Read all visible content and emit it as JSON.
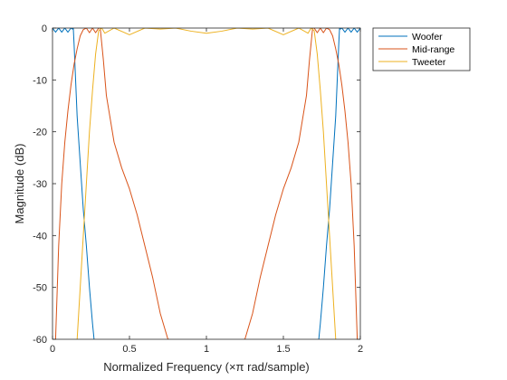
{
  "chart_data": {
    "type": "line",
    "xlabel": "Normalized  Frequency  (×π  rad/sample)",
    "ylabel": "Magnitude (dB)",
    "xlim": [
      0,
      2
    ],
    "ylim": [
      -60,
      0
    ],
    "x_ticks": [
      0,
      0.5,
      1,
      1.5,
      2
    ],
    "x_tick_labels": [
      "0",
      "0.5",
      "1",
      "1.5",
      "2"
    ],
    "y_ticks": [
      0,
      -10,
      -20,
      -30,
      -40,
      -50,
      -60
    ],
    "y_tick_labels": [
      "0",
      "-10",
      "-20",
      "-30",
      "-40",
      "-50",
      "-60"
    ],
    "grid": false,
    "legend_position": "outside-top-right",
    "series": [
      {
        "name": "Woofer",
        "color": "#0072BD",
        "x": [
          0,
          0.02,
          0.04,
          0.06,
          0.08,
          0.1,
          0.12,
          0.13,
          0.135,
          0.14,
          0.15,
          0.16,
          0.18,
          0.2,
          0.22,
          0.24,
          0.26,
          0.27,
          1.73,
          1.74,
          1.76,
          1.78,
          1.8,
          1.82,
          1.84,
          1.85,
          1.86,
          1.865,
          1.87,
          1.88,
          1.9,
          1.92,
          1.94,
          1.96,
          1.98,
          2.0
        ],
        "y": [
          0,
          -0.8,
          0,
          -0.8,
          0,
          -0.8,
          0,
          -0.2,
          0,
          -3,
          -10,
          -17,
          -26,
          -35,
          -42,
          -50,
          -57,
          -60,
          -60,
          -57,
          -50,
          -42,
          -35,
          -26,
          -17,
          -10,
          -3,
          0,
          -0.2,
          0,
          -0.8,
          0,
          -0.8,
          0,
          -0.8,
          0
        ]
      },
      {
        "name": "Mid-range",
        "color": "#D95319",
        "x": [
          0.02,
          0.04,
          0.06,
          0.08,
          0.1,
          0.12,
          0.14,
          0.16,
          0.18,
          0.2,
          0.22,
          0.24,
          0.26,
          0.28,
          0.3,
          0.31,
          0.33,
          0.35,
          0.4,
          0.45,
          0.5,
          0.55,
          0.6,
          0.65,
          0.7,
          0.75,
          0.76,
          1.24,
          1.25,
          1.3,
          1.35,
          1.4,
          1.45,
          1.5,
          1.55,
          1.6,
          1.65,
          1.67,
          1.69,
          1.7,
          1.72,
          1.74,
          1.76,
          1.78,
          1.8,
          1.82,
          1.84,
          1.86,
          1.88,
          1.9,
          1.92,
          1.94,
          1.96,
          1.98
        ],
        "y": [
          -60,
          -42,
          -30,
          -22,
          -16,
          -11,
          -7,
          -4,
          -1.5,
          -0.3,
          0,
          -0.9,
          0,
          -0.9,
          0,
          0,
          -6,
          -13,
          -22,
          -27,
          -31,
          -36,
          -42,
          -48,
          -55,
          -60,
          -60,
          -60,
          -60,
          -55,
          -48,
          -42,
          -36,
          -31,
          -27,
          -22,
          -13,
          -6,
          0,
          0,
          -0.9,
          0,
          -0.9,
          0,
          -0.3,
          -1.5,
          -4,
          -7,
          -11,
          -16,
          -22,
          -30,
          -42,
          -60
        ]
      },
      {
        "name": "Tweeter",
        "color": "#EDB120",
        "x": [
          0.16,
          0.18,
          0.2,
          0.22,
          0.24,
          0.26,
          0.28,
          0.3,
          0.32,
          0.34,
          0.4,
          0.5,
          0.6,
          0.7,
          0.8,
          0.9,
          1.0,
          1.1,
          1.2,
          1.3,
          1.4,
          1.5,
          1.6,
          1.66,
          1.68,
          1.7,
          1.72,
          1.74,
          1.76,
          1.78,
          1.8,
          1.82,
          1.84
        ],
        "y": [
          -60,
          -50,
          -40,
          -30,
          -20,
          -12,
          -5,
          -0.5,
          0,
          -1,
          0,
          -1.3,
          0,
          -0.2,
          0,
          -0.6,
          -1,
          -0.6,
          0,
          -0.2,
          0,
          -1.3,
          0,
          -1,
          0,
          -0.5,
          -5,
          -12,
          -20,
          -30,
          -40,
          -50,
          -60
        ]
      }
    ]
  }
}
